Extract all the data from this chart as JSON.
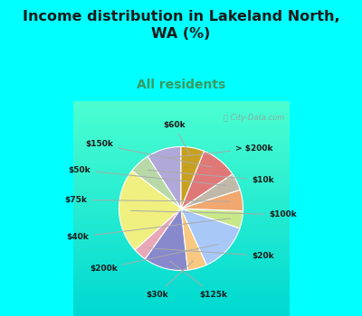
{
  "title": "Income distribution in Lakeland North,\nWA (%)",
  "subtitle": "All residents",
  "bg_color": "#00FFFF",
  "chart_bg_top": "#c8e6c9",
  "chart_bg_bottom": "#e0f4f4",
  "watermark": "City-Data.com",
  "labels": [
    "> $200k",
    "$10k",
    "$100k",
    "$20k",
    "$125k",
    "$30k",
    "$200k",
    "$40k",
    "$75k",
    "$50k",
    "$150k",
    "$60k"
  ],
  "values": [
    9.0,
    5.5,
    22.0,
    3.5,
    11.5,
    5.0,
    13.0,
    4.5,
    5.5,
    4.5,
    9.5,
    6.0
  ],
  "colors": [
    "#b0a8d8",
    "#b8d8a8",
    "#f0f080",
    "#e8a8b8",
    "#8888cc",
    "#f8c880",
    "#a8c8f8",
    "#c8e888",
    "#f0a870",
    "#c0b8a8",
    "#e07878",
    "#c8a020"
  ],
  "label_text_color": "#1a1a1a",
  "line_color": "#888888",
  "title_color": "#1a1a1a",
  "subtitle_color": "#3a9a60"
}
